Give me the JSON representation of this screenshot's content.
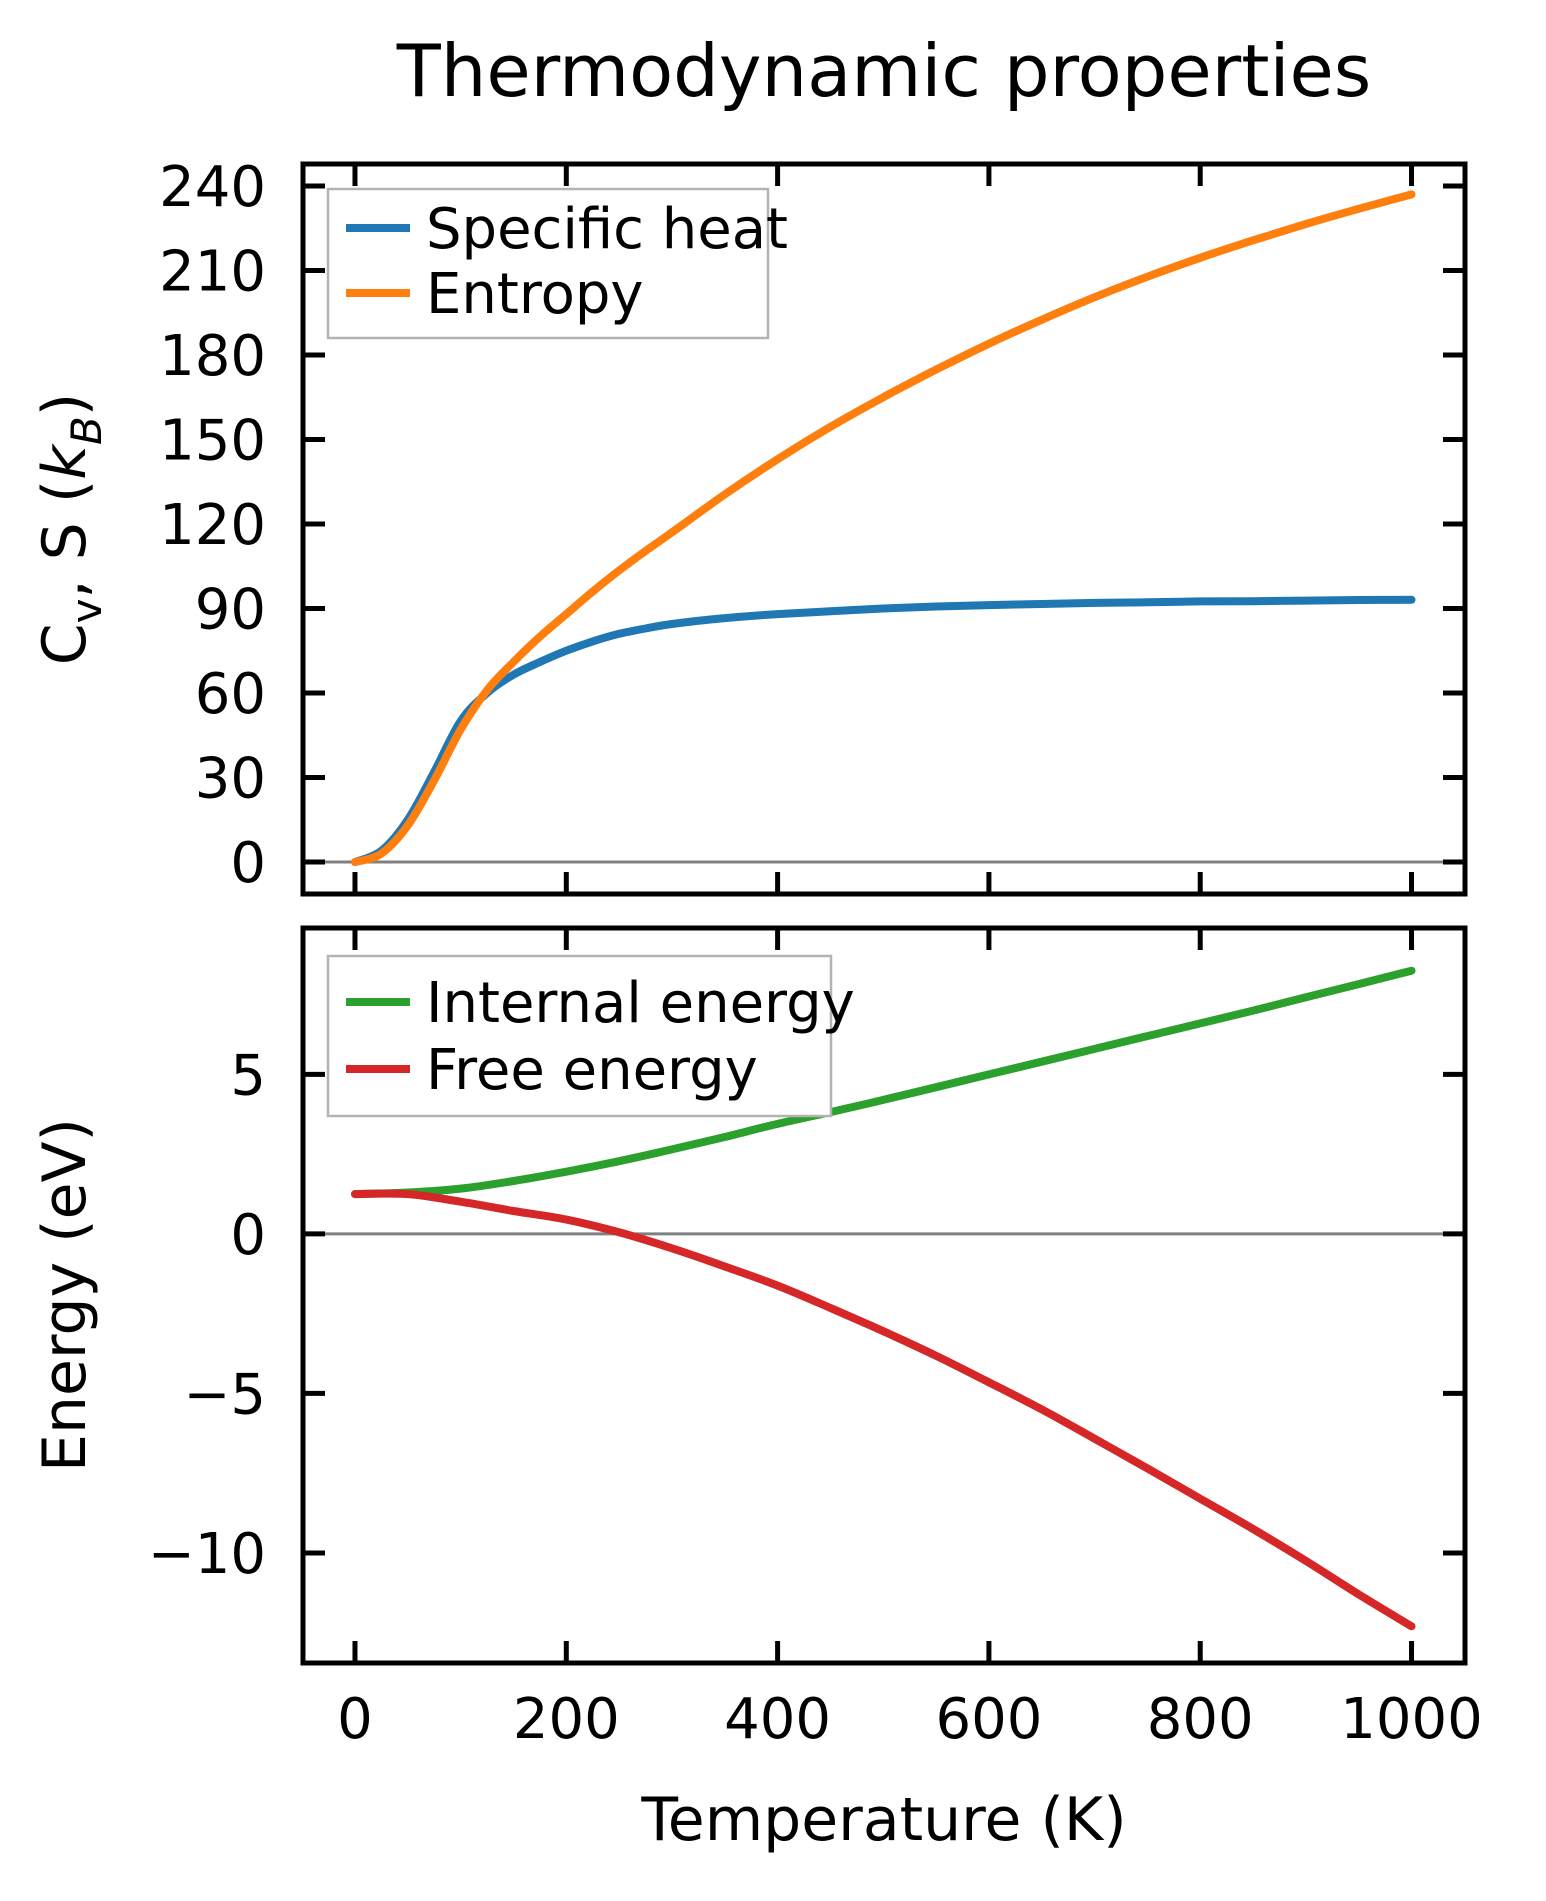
{
  "figure": {
    "title": "Thermodynamic properties",
    "background": "#ffffff",
    "spine_color": "#000000",
    "zero_line_color": "#808080",
    "legend_border_color": "#b3b3b3"
  },
  "chart_data": [
    {
      "type": "line",
      "panel": "top",
      "ylabel": "C_v, S (k_B)",
      "ylabel_segments": [
        {
          "t": "C"
        },
        {
          "t": "v",
          "sub": true
        },
        {
          "t": ", S ("
        },
        {
          "t": "k",
          "italic": true
        },
        {
          "t": "B",
          "sub": true,
          "italic": true
        },
        {
          "t": ")"
        }
      ],
      "xlabel": "",
      "xlim": [
        -49.2,
        1050.6
      ],
      "ylim": [
        -11.36,
        247.8
      ],
      "xticks": [
        0,
        200,
        400,
        600,
        800,
        1000
      ],
      "xtick_labels_visible": false,
      "yticks": [
        0,
        30,
        60,
        90,
        120,
        150,
        180,
        210,
        240
      ],
      "grid": false,
      "tick_direction": "in",
      "ticks_on_all_sides": true,
      "zero_line": 0,
      "legend": {
        "position": "upper left",
        "entries": [
          "Specific heat",
          "Entropy"
        ]
      },
      "series": [
        {
          "name": "Specific heat",
          "color": "#1f77b4",
          "x": [
            0,
            25,
            50,
            75,
            100,
            125,
            150,
            175,
            200,
            225,
            250,
            275,
            300,
            350,
            400,
            450,
            500,
            550,
            600,
            650,
            700,
            750,
            800,
            850,
            900,
            950,
            1000
          ],
          "y": [
            0,
            4,
            15,
            32,
            50,
            60,
            66.5,
            71,
            75,
            78.3,
            81,
            82.9,
            84.5,
            86.6,
            88,
            89,
            90,
            90.7,
            91.2,
            91.6,
            92,
            92.2,
            92.5,
            92.6,
            92.8,
            93,
            93.1
          ]
        },
        {
          "name": "Entropy",
          "color": "#ff7f0e",
          "x": [
            0,
            25,
            50,
            75,
            100,
            125,
            150,
            175,
            200,
            225,
            250,
            275,
            300,
            350,
            400,
            450,
            500,
            550,
            600,
            650,
            700,
            750,
            800,
            850,
            900,
            950,
            1000
          ],
          "y": [
            0,
            3,
            13,
            29,
            47,
            61,
            71,
            80,
            88,
            96,
            103.5,
            110.4,
            117,
            130.5,
            143,
            154.5,
            165,
            174.8,
            184,
            192.5,
            200.5,
            207.8,
            214.5,
            220.7,
            226.5,
            231.9,
            237
          ]
        }
      ]
    },
    {
      "type": "line",
      "panel": "bottom",
      "ylabel": "Energy (eV)",
      "ylabel_segments": [
        {
          "t": "Energy (eV)"
        }
      ],
      "xlabel": "Temperature (K)",
      "xlim": [
        -49.2,
        1050.6
      ],
      "ylim": [
        -13.45,
        9.59
      ],
      "xticks": [
        0,
        200,
        400,
        600,
        800,
        1000
      ],
      "xtick_labels_visible": true,
      "yticks": [
        -10,
        -5,
        0,
        5
      ],
      "grid": false,
      "tick_direction": "in",
      "ticks_on_all_sides": true,
      "zero_line": 0,
      "legend": {
        "position": "upper left",
        "entries": [
          "Internal energy",
          "Free energy"
        ]
      },
      "series": [
        {
          "name": "Internal energy",
          "color": "#2ca02c",
          "x": [
            0,
            50,
            100,
            150,
            200,
            250,
            300,
            350,
            400,
            450,
            500,
            550,
            600,
            650,
            700,
            750,
            800,
            850,
            900,
            950,
            1000
          ],
          "y": [
            1.25,
            1.3,
            1.42,
            1.66,
            1.95,
            2.28,
            2.65,
            3.04,
            3.45,
            3.82,
            4.2,
            4.6,
            5.0,
            5.4,
            5.8,
            6.2,
            6.6,
            7.0,
            7.42,
            7.83,
            8.25
          ]
        },
        {
          "name": "Free energy",
          "color": "#d62728",
          "x": [
            0,
            50,
            100,
            150,
            200,
            250,
            300,
            350,
            400,
            450,
            500,
            550,
            600,
            650,
            700,
            750,
            800,
            850,
            900,
            950,
            1000
          ],
          "y": [
            1.25,
            1.25,
            1.01,
            0.72,
            0.45,
            0.05,
            -0.45,
            -1.02,
            -1.62,
            -2.32,
            -3.05,
            -3.82,
            -4.65,
            -5.5,
            -6.42,
            -7.35,
            -8.3,
            -9.25,
            -10.25,
            -11.3,
            -12.3
          ]
        }
      ]
    }
  ]
}
